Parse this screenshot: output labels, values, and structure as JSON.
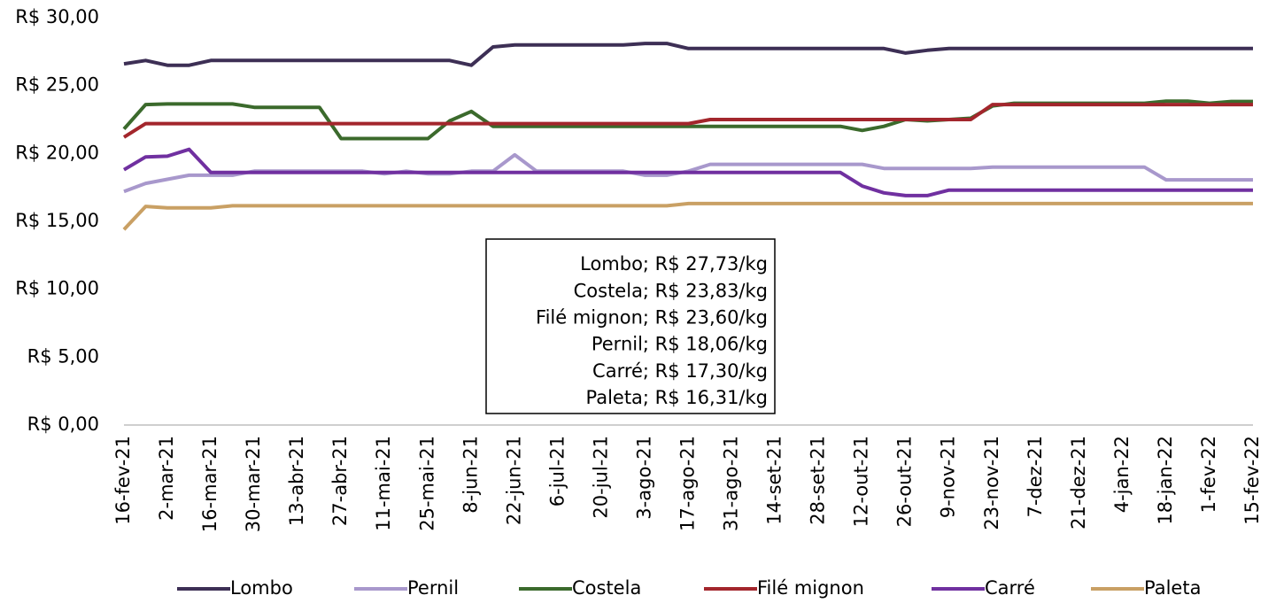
{
  "chart_data": {
    "type": "line",
    "categories": [
      "16-fev-21",
      null,
      "2-mar-21",
      null,
      "16-mar-21",
      null,
      "30-mar-21",
      null,
      "13-abr-21",
      null,
      "27-abr-21",
      null,
      "11-mai-21",
      null,
      "25-mai-21",
      null,
      "8-jun-21",
      null,
      "22-jun-21",
      null,
      "6-jul-21",
      null,
      "20-jul-21",
      null,
      "3-ago-21",
      null,
      "17-ago-21",
      null,
      "31-ago-21",
      null,
      "14-set-21",
      null,
      "28-set-21",
      null,
      "12-out-21",
      null,
      "26-out-21",
      null,
      "9-nov-21",
      null,
      "23-nov-21",
      null,
      "7-dez-21",
      null,
      "21-dez-21",
      null,
      "4-jan-22",
      null,
      "18-jan-22",
      null,
      "1-fev-22",
      null,
      "15-fev-22"
    ],
    "series": [
      {
        "name": "Lombo",
        "color": "#3d2f55",
        "values": [
          26.6,
          26.85,
          26.5,
          26.5,
          26.85,
          26.85,
          26.85,
          26.85,
          26.85,
          26.85,
          26.85,
          26.85,
          26.85,
          26.85,
          26.85,
          26.85,
          26.5,
          27.85,
          28.0,
          28.0,
          28.0,
          28.0,
          28.0,
          28.0,
          28.1,
          28.1,
          27.73,
          27.73,
          27.73,
          27.73,
          27.73,
          27.73,
          27.73,
          27.73,
          27.73,
          27.73,
          27.4,
          27.6,
          27.73,
          27.73,
          27.73,
          27.73,
          27.73,
          27.73,
          27.73,
          27.73,
          27.73,
          27.73,
          27.73,
          27.73,
          27.73,
          27.73,
          27.73
        ]
      },
      {
        "name": "Pernil",
        "color": "#a898cc",
        "values": [
          17.2,
          17.8,
          18.1,
          18.4,
          18.4,
          18.4,
          18.7,
          18.7,
          18.7,
          18.7,
          18.7,
          18.7,
          18.5,
          18.7,
          18.5,
          18.5,
          18.7,
          18.7,
          19.9,
          18.7,
          18.7,
          18.7,
          18.7,
          18.7,
          18.4,
          18.4,
          18.7,
          19.2,
          19.2,
          19.2,
          19.2,
          19.2,
          19.2,
          19.2,
          19.2,
          18.9,
          18.9,
          18.9,
          18.9,
          18.9,
          19.0,
          19.0,
          19.0,
          19.0,
          19.0,
          19.0,
          19.0,
          19.0,
          18.06,
          18.06,
          18.06,
          18.06,
          18.06
        ]
      },
      {
        "name": "Costela",
        "color": "#3b6a2c",
        "values": [
          21.8,
          23.6,
          23.65,
          23.65,
          23.65,
          23.65,
          23.4,
          23.4,
          23.4,
          23.4,
          21.1,
          21.1,
          21.1,
          21.1,
          21.1,
          22.4,
          23.1,
          22.0,
          22.0,
          22.0,
          22.0,
          22.0,
          22.0,
          22.0,
          22.0,
          22.0,
          22.0,
          22.0,
          22.0,
          22.0,
          22.0,
          22.0,
          22.0,
          22.0,
          21.7,
          22.0,
          22.5,
          22.4,
          22.5,
          22.6,
          23.5,
          23.7,
          23.7,
          23.7,
          23.7,
          23.7,
          23.7,
          23.7,
          23.85,
          23.85,
          23.7,
          23.83,
          23.83
        ]
      },
      {
        "name": "Filé mignon",
        "color": "#a3262c",
        "values": [
          21.2,
          22.2,
          22.2,
          22.2,
          22.2,
          22.2,
          22.2,
          22.2,
          22.2,
          22.2,
          22.2,
          22.2,
          22.2,
          22.2,
          22.2,
          22.2,
          22.2,
          22.2,
          22.2,
          22.2,
          22.2,
          22.2,
          22.2,
          22.2,
          22.2,
          22.2,
          22.2,
          22.5,
          22.5,
          22.5,
          22.5,
          22.5,
          22.5,
          22.5,
          22.5,
          22.5,
          22.5,
          22.5,
          22.5,
          22.5,
          23.6,
          23.6,
          23.6,
          23.6,
          23.6,
          23.6,
          23.6,
          23.6,
          23.6,
          23.6,
          23.6,
          23.6,
          23.6
        ]
      },
      {
        "name": "Carré",
        "color": "#7030a0",
        "values": [
          18.8,
          19.75,
          19.8,
          20.3,
          18.6,
          18.6,
          18.6,
          18.6,
          18.6,
          18.6,
          18.6,
          18.6,
          18.6,
          18.6,
          18.6,
          18.6,
          18.6,
          18.6,
          18.6,
          18.6,
          18.6,
          18.6,
          18.6,
          18.6,
          18.6,
          18.6,
          18.6,
          18.6,
          18.6,
          18.6,
          18.6,
          18.6,
          18.6,
          18.6,
          17.6,
          17.1,
          16.9,
          16.9,
          17.3,
          17.3,
          17.3,
          17.3,
          17.3,
          17.3,
          17.3,
          17.3,
          17.3,
          17.3,
          17.3,
          17.3,
          17.3,
          17.3,
          17.3
        ]
      },
      {
        "name": "Paleta",
        "color": "#c9a064",
        "values": [
          14.4,
          16.1,
          16.0,
          16.0,
          16.0,
          16.15,
          16.15,
          16.15,
          16.15,
          16.15,
          16.15,
          16.15,
          16.15,
          16.15,
          16.15,
          16.15,
          16.15,
          16.15,
          16.15,
          16.15,
          16.15,
          16.15,
          16.15,
          16.15,
          16.15,
          16.15,
          16.31,
          16.31,
          16.31,
          16.31,
          16.31,
          16.31,
          16.31,
          16.31,
          16.31,
          16.31,
          16.31,
          16.31,
          16.31,
          16.31,
          16.31,
          16.31,
          16.31,
          16.31,
          16.31,
          16.31,
          16.31,
          16.31,
          16.31,
          16.31,
          16.31,
          16.31,
          16.31
        ]
      }
    ],
    "ylim": [
      0,
      30
    ],
    "yticks": [
      {
        "value": 0,
        "label": "R$ 0,00"
      },
      {
        "value": 5,
        "label": "R$ 5,00"
      },
      {
        "value": 10,
        "label": "R$ 10,00"
      },
      {
        "value": 15,
        "label": "R$ 15,00"
      },
      {
        "value": 20,
        "label": "R$ 20,00"
      },
      {
        "value": 25,
        "label": "R$ 25,00"
      },
      {
        "value": 30,
        "label": "R$ 30,00"
      }
    ],
    "annotations": [
      "Lombo; R$ 27,73/kg",
      "Costela; R$ 23,83/kg",
      "Filé mignon; R$ 23,60/kg",
      "Pernil; R$ 18,06/kg",
      "Carré; R$ 17,30/kg",
      "Paleta; R$ 16,31/kg"
    ],
    "legend": "bottom"
  }
}
